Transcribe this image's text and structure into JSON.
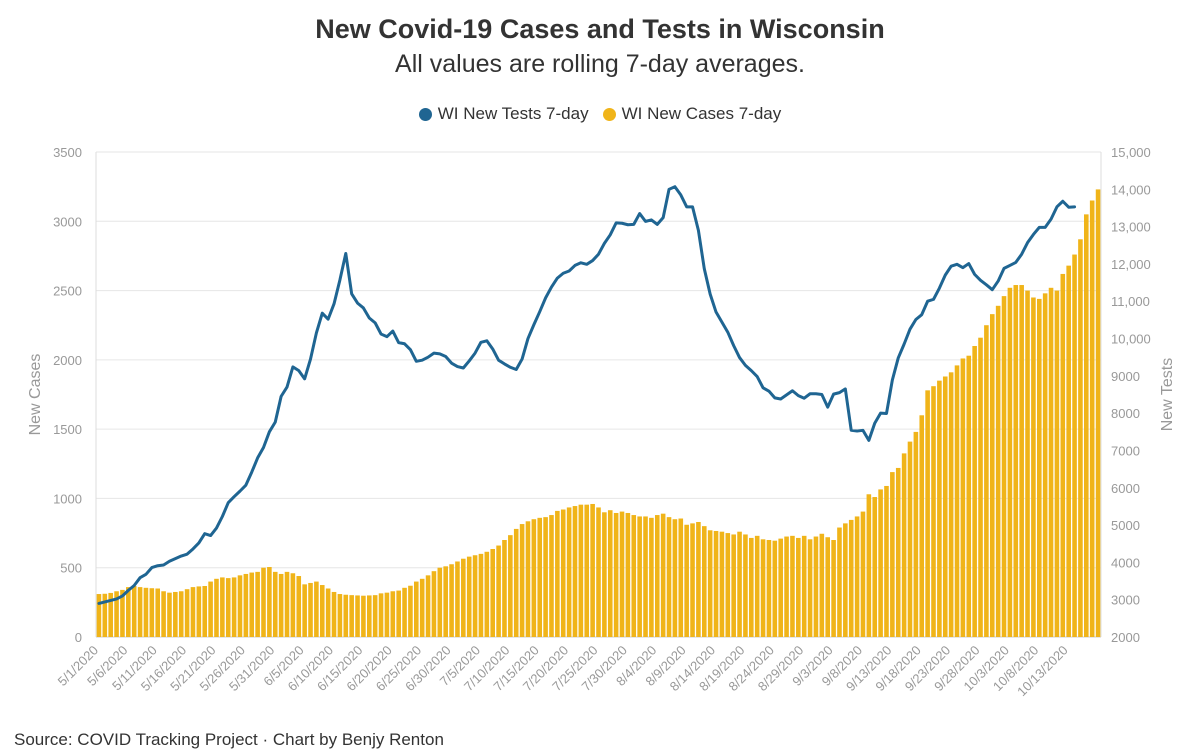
{
  "title": "New Covid-19 Cases and Tests in Wisconsin",
  "subtitle": "All values are rolling 7-day averages.",
  "source": "Source: COVID Tracking Project · Chart by Benjy Renton",
  "legend": [
    {
      "label": "WI New Tests 7-day",
      "color": "#1f6592"
    },
    {
      "label": "WI New Cases 7-day",
      "color": "#f0b419"
    }
  ],
  "chart_data": {
    "type": "bar",
    "xlabel": "",
    "ylabel": "New Cases",
    "y2label": "New Tests",
    "ylim": [
      0,
      3500
    ],
    "y2lim": [
      2000,
      15000
    ],
    "yticks": [
      "0",
      "500",
      "1000",
      "1500",
      "2000",
      "2500",
      "3000",
      "3500"
    ],
    "y2ticks": [
      "2000",
      "3000",
      "4000",
      "5000",
      "6000",
      "7000",
      "8000",
      "9000",
      "10,000",
      "11,000",
      "12,000",
      "13,000",
      "14,000",
      "15,000"
    ],
    "xticks": [
      "5/1/2020",
      "5/6/2020",
      "5/11/2020",
      "5/16/2020",
      "5/21/2020",
      "5/26/2020",
      "5/31/2020",
      "6/5/2020",
      "6/10/2020",
      "6/15/2020",
      "6/20/2020",
      "6/25/2020",
      "6/30/2020",
      "7/5/2020",
      "7/10/2020",
      "7/15/2020",
      "7/20/2020",
      "7/25/2020",
      "7/30/2020",
      "8/4/2020",
      "8/9/2020",
      "8/14/2020",
      "8/19/2020",
      "8/24/2020",
      "8/29/2020",
      "9/3/2020",
      "9/8/2020",
      "9/13/2020",
      "9/18/2020",
      "9/23/2020",
      "9/28/2020",
      "10/3/2020",
      "10/8/2020",
      "10/13/2020"
    ],
    "grid": true,
    "legend_position": "top-center",
    "start_date": "5/1/2020",
    "series": [
      {
        "name": "WI New Cases 7-day",
        "type": "bar",
        "axis": "left",
        "color": "#f0b419",
        "values": [
          310,
          312,
          318,
          330,
          340,
          360,
          368,
          360,
          355,
          352,
          350,
          330,
          320,
          325,
          330,
          345,
          360,
          365,
          368,
          400,
          420,
          430,
          425,
          430,
          445,
          455,
          465,
          470,
          500,
          505,
          470,
          455,
          470,
          460,
          440,
          380,
          390,
          400,
          375,
          350,
          325,
          310,
          305,
          302,
          300,
          298,
          300,
          302,
          315,
          320,
          330,
          335,
          355,
          370,
          400,
          420,
          445,
          475,
          500,
          510,
          525,
          545,
          565,
          580,
          590,
          600,
          615,
          635,
          660,
          700,
          735,
          780,
          815,
          835,
          850,
          860,
          865,
          880,
          910,
          920,
          935,
          945,
          955,
          955,
          960,
          935,
          900,
          915,
          895,
          905,
          895,
          880,
          870,
          870,
          860,
          880,
          890,
          865,
          850,
          855,
          810,
          820,
          830,
          800,
          770,
          765,
          760,
          750,
          740,
          760,
          740,
          715,
          730,
          705,
          700,
          695,
          710,
          725,
          730,
          715,
          730,
          705,
          725,
          745,
          720,
          700,
          790,
          820,
          845,
          870,
          905,
          1030,
          1010,
          1065,
          1090,
          1190,
          1220,
          1325,
          1410,
          1480,
          1600,
          1780,
          1810,
          1850,
          1880,
          1910,
          1960,
          2010,
          2030,
          2100,
          2160,
          2250,
          2330,
          2390,
          2460,
          2520,
          2540,
          2540,
          2500,
          2450,
          2440,
          2480,
          2520,
          2500,
          2620,
          2680,
          2760,
          2870,
          3050,
          3150,
          3230
        ]
      },
      {
        "name": "WI New Tests 7-day",
        "type": "line",
        "axis": "right",
        "color": "#1f6592",
        "values": [
          2900,
          2940,
          2980,
          3020,
          3100,
          3250,
          3380,
          3590,
          3680,
          3860,
          3910,
          3930,
          4030,
          4100,
          4170,
          4220,
          4360,
          4520,
          4770,
          4720,
          4920,
          5230,
          5600,
          5760,
          5910,
          6070,
          6420,
          6800,
          7080,
          7500,
          7760,
          8450,
          8700,
          9240,
          9140,
          8920,
          9450,
          10150,
          10680,
          10520,
          10930,
          11570,
          12280,
          11200,
          10950,
          10820,
          10550,
          10420,
          10120,
          10050,
          10200,
          9890,
          9860,
          9700,
          9390,
          9420,
          9500,
          9610,
          9590,
          9520,
          9340,
          9250,
          9210,
          9400,
          9610,
          9900,
          9940,
          9720,
          9420,
          9320,
          9230,
          9170,
          9450,
          10000,
          10370,
          10720,
          11090,
          11380,
          11620,
          11750,
          11810,
          11960,
          12030,
          11990,
          12090,
          12260,
          12550,
          12780,
          13100,
          13090,
          13050,
          13060,
          13350,
          13140,
          13180,
          13060,
          13240,
          14000,
          14070,
          13850,
          13530,
          13530,
          12900,
          11870,
          11190,
          10710,
          10440,
          10170,
          9810,
          9490,
          9280,
          9140,
          8980,
          8680,
          8590,
          8410,
          8380,
          8490,
          8600,
          8470,
          8400,
          8520,
          8520,
          8500,
          8160,
          8510,
          8550,
          8650,
          7540,
          7520,
          7540,
          7270,
          7730,
          8000,
          7990,
          8890,
          9480,
          9850,
          10250,
          10510,
          10640,
          11000,
          11050,
          11350,
          11700,
          11940,
          11990,
          11900,
          12010,
          11720,
          11560,
          11440,
          11310,
          11540,
          11880,
          11960,
          12040,
          12260,
          12570,
          12790,
          12980,
          12980,
          13200,
          13530,
          13680,
          13520,
          13530
        ]
      }
    ]
  }
}
